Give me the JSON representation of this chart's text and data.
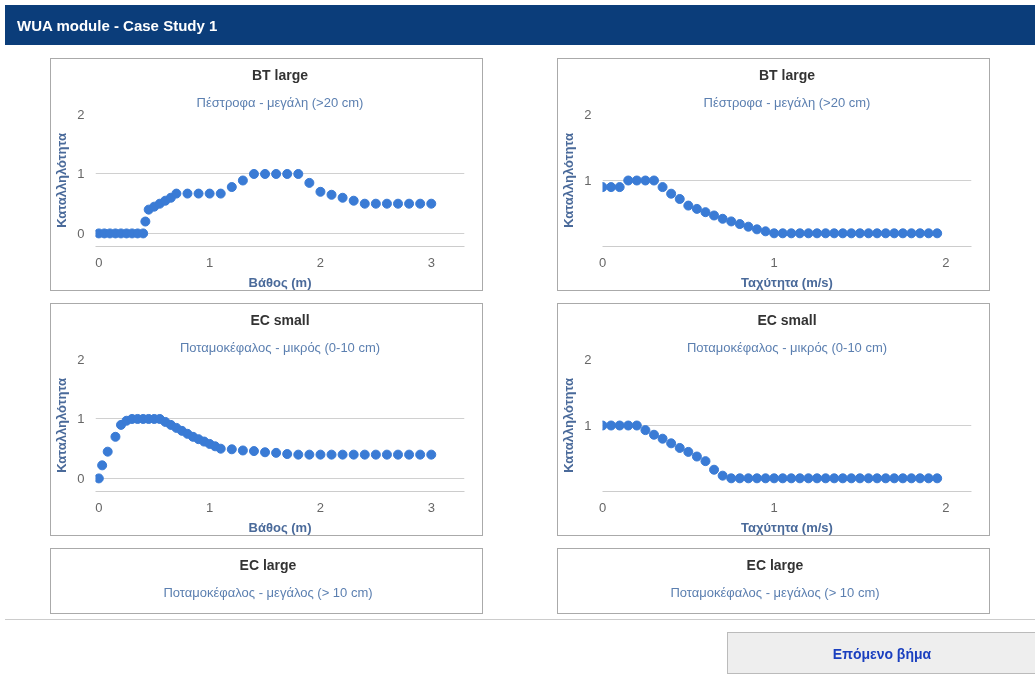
{
  "chart_data": [
    {
      "type": "other",
      "title": "WUA module - Case Study 1",
      "annotations": [
        "Επόμενο βήμα"
      ]
    },
    {
      "type": "scatter",
      "title": "BT large",
      "subtitle": "Πέστροφα - μεγάλη (>20 cm)",
      "xlabel": "Βάθος (m)",
      "ylabel": "Καταλληλότητα",
      "marker": "circle",
      "grid": "y",
      "xlim": [
        -0.03,
        3.3
      ],
      "ylim": [
        -0.22,
        2
      ],
      "xticks": [
        0,
        1,
        2,
        3
      ],
      "yticks": [
        0,
        1,
        2
      ],
      "series": [
        {
          "color": "#3a7bd5",
          "x": [
            0,
            0.05,
            0.1,
            0.15,
            0.2,
            0.25,
            0.3,
            0.35,
            0.4,
            0.42,
            0.45,
            0.5,
            0.55,
            0.6,
            0.65,
            0.7,
            0.8,
            0.9,
            1.0,
            1.1,
            1.2,
            1.3,
            1.4,
            1.5,
            1.6,
            1.7,
            1.8,
            1.9,
            2.0,
            2.1,
            2.2,
            2.3,
            2.4,
            2.5,
            2.6,
            2.7,
            2.8,
            2.9,
            3.0
          ],
          "values": [
            0,
            0,
            0,
            0,
            0,
            0,
            0,
            0,
            0,
            0.2,
            0.4,
            0.45,
            0.5,
            0.55,
            0.6,
            0.67,
            0.67,
            0.67,
            0.67,
            0.67,
            0.78,
            0.89,
            1,
            1,
            1,
            1,
            1,
            0.85,
            0.7,
            0.65,
            0.6,
            0.55,
            0.5,
            0.5,
            0.5,
            0.5,
            0.5,
            0.5,
            0.5
          ]
        }
      ]
    },
    {
      "type": "scatter",
      "title": "BT large",
      "subtitle": "Πέστροφα - μεγάλη (>20 cm)",
      "xlabel": "Ταχύτητα (m/s)",
      "ylabel": "Καταλληλότητα",
      "marker": "circle",
      "grid": "y",
      "xlim": [
        0,
        2.15
      ],
      "ylim": [
        0,
        2
      ],
      "xticks": [
        0,
        1,
        2
      ],
      "yticks": [
        1,
        2
      ],
      "series": [
        {
          "color": "#3a7bd5",
          "x": [
            0,
            0.05,
            0.1,
            0.15,
            0.2,
            0.25,
            0.3,
            0.35,
            0.4,
            0.45,
            0.5,
            0.55,
            0.6,
            0.65,
            0.7,
            0.75,
            0.8,
            0.85,
            0.9,
            0.95,
            1.0,
            1.05,
            1.1,
            1.15,
            1.2,
            1.25,
            1.3,
            1.35,
            1.4,
            1.45,
            1.5,
            1.55,
            1.6,
            1.65,
            1.7,
            1.75,
            1.8,
            1.85,
            1.9,
            1.95
          ],
          "values": [
            0.9,
            0.9,
            0.9,
            1,
            1,
            1,
            1,
            0.9,
            0.8,
            0.72,
            0.62,
            0.57,
            0.52,
            0.47,
            0.42,
            0.38,
            0.34,
            0.3,
            0.26,
            0.23,
            0.2,
            0.2,
            0.2,
            0.2,
            0.2,
            0.2,
            0.2,
            0.2,
            0.2,
            0.2,
            0.2,
            0.2,
            0.2,
            0.2,
            0.2,
            0.2,
            0.2,
            0.2,
            0.2,
            0.2
          ]
        }
      ]
    },
    {
      "type": "scatter",
      "title": "EC small",
      "subtitle": "Ποταμοκέφαλος - μικρός (0-10 cm)",
      "xlabel": "Βάθος (m)",
      "ylabel": "Καταλληλότητα",
      "marker": "circle",
      "grid": "y",
      "xlim": [
        -0.03,
        3.3
      ],
      "ylim": [
        -0.22,
        2
      ],
      "xticks": [
        0,
        1,
        2,
        3
      ],
      "yticks": [
        0,
        1,
        2
      ],
      "series": [
        {
          "color": "#3a7bd5",
          "x": [
            0,
            0.03,
            0.08,
            0.15,
            0.2,
            0.25,
            0.3,
            0.35,
            0.4,
            0.45,
            0.5,
            0.55,
            0.6,
            0.65,
            0.7,
            0.75,
            0.8,
            0.85,
            0.9,
            0.95,
            1.0,
            1.05,
            1.1,
            1.2,
            1.3,
            1.4,
            1.5,
            1.6,
            1.7,
            1.8,
            1.9,
            2.0,
            2.1,
            2.2,
            2.3,
            2.4,
            2.5,
            2.6,
            2.7,
            2.8,
            2.9,
            3.0
          ],
          "values": [
            0,
            0.22,
            0.45,
            0.7,
            0.9,
            0.97,
            1,
            1,
            1,
            1,
            1,
            1,
            0.95,
            0.9,
            0.85,
            0.8,
            0.75,
            0.7,
            0.66,
            0.62,
            0.58,
            0.54,
            0.5,
            0.49,
            0.47,
            0.46,
            0.44,
            0.43,
            0.41,
            0.4,
            0.4,
            0.4,
            0.4,
            0.4,
            0.4,
            0.4,
            0.4,
            0.4,
            0.4,
            0.4,
            0.4,
            0.4
          ]
        }
      ]
    },
    {
      "type": "scatter",
      "title": "EC small",
      "subtitle": "Ποταμοκέφαλος - μικρός (0-10 cm)",
      "xlabel": "Ταχύτητα (m/s)",
      "ylabel": "Καταλληλότητα",
      "marker": "circle",
      "grid": "y",
      "xlim": [
        0,
        2.15
      ],
      "ylim": [
        0,
        2
      ],
      "xticks": [
        0,
        1,
        2
      ],
      "yticks": [
        1,
        2
      ],
      "series": [
        {
          "color": "#3a7bd5",
          "x": [
            0,
            0.05,
            0.1,
            0.15,
            0.2,
            0.25,
            0.3,
            0.35,
            0.4,
            0.45,
            0.5,
            0.55,
            0.6,
            0.65,
            0.7,
            0.75,
            0.8,
            0.85,
            0.9,
            0.95,
            1.0,
            1.05,
            1.1,
            1.15,
            1.2,
            1.25,
            1.3,
            1.35,
            1.4,
            1.45,
            1.5,
            1.55,
            1.6,
            1.65,
            1.7,
            1.75,
            1.8,
            1.85,
            1.9,
            1.95
          ],
          "values": [
            1,
            1,
            1,
            1,
            1,
            0.93,
            0.86,
            0.8,
            0.73,
            0.66,
            0.6,
            0.53,
            0.46,
            0.33,
            0.24,
            0.2,
            0.2,
            0.2,
            0.2,
            0.2,
            0.2,
            0.2,
            0.2,
            0.2,
            0.2,
            0.2,
            0.2,
            0.2,
            0.2,
            0.2,
            0.2,
            0.2,
            0.2,
            0.2,
            0.2,
            0.2,
            0.2,
            0.2,
            0.2,
            0.2
          ]
        }
      ]
    },
    {
      "type": "other",
      "title": "EC large",
      "subtitle": "Ποταμοκέφαλος - μεγάλος (> 10 cm)"
    },
    {
      "type": "other",
      "title": "EC large",
      "subtitle": "Ποταμοκέφαλος - μεγάλος (> 10 cm)"
    }
  ]
}
